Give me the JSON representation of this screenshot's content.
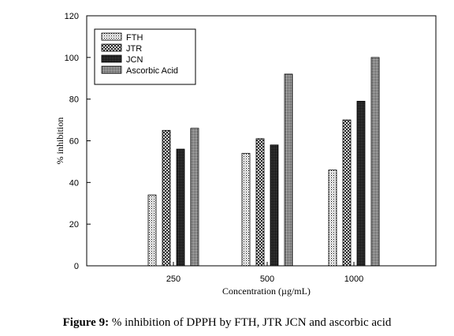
{
  "chart_data": {
    "type": "bar",
    "categories": [
      "250",
      "500",
      "1000"
    ],
    "series": [
      {
        "name": "FTH",
        "values": [
          34,
          54,
          46
        ],
        "pattern": "dots"
      },
      {
        "name": "JTR",
        "values": [
          65,
          61,
          70
        ],
        "pattern": "crosshatch"
      },
      {
        "name": "JCN",
        "values": [
          56,
          58,
          79
        ],
        "pattern": "dense-dark"
      },
      {
        "name": "Ascorbic Acid",
        "values": [
          66,
          92,
          100
        ],
        "pattern": "dense-grey"
      }
    ],
    "title": "",
    "xlabel": "Concentration (µg/mL)",
    "ylabel": "% inhibition",
    "ylim": [
      0,
      120
    ],
    "yticks": [
      0,
      20,
      40,
      60,
      80,
      100,
      120
    ],
    "grid": false,
    "legend": "top-left"
  },
  "caption": {
    "label": "Figure 9:",
    "text": " % inhibition of DPPH by FTH, JTR JCN and ascorbic acid"
  }
}
